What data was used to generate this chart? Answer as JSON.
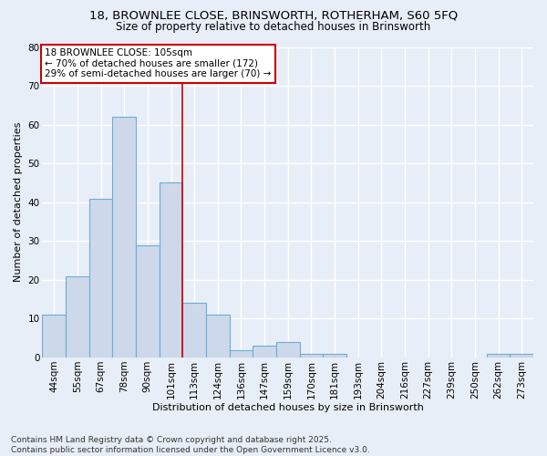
{
  "title_line1": "18, BROWNLEE CLOSE, BRINSWORTH, ROTHERHAM, S60 5FQ",
  "title_line2": "Size of property relative to detached houses in Brinsworth",
  "xlabel": "Distribution of detached houses by size in Brinsworth",
  "ylabel": "Number of detached properties",
  "categories": [
    "44sqm",
    "55sqm",
    "67sqm",
    "78sqm",
    "90sqm",
    "101sqm",
    "113sqm",
    "124sqm",
    "136sqm",
    "147sqm",
    "159sqm",
    "170sqm",
    "181sqm",
    "193sqm",
    "204sqm",
    "216sqm",
    "227sqm",
    "239sqm",
    "250sqm",
    "262sqm",
    "273sqm"
  ],
  "values": [
    11,
    21,
    41,
    62,
    29,
    45,
    14,
    11,
    2,
    3,
    4,
    1,
    1,
    0,
    0,
    0,
    0,
    0,
    0,
    1,
    1
  ],
  "bar_color": "#cdd8ea",
  "bar_edgecolor": "#6baed6",
  "vline_color": "#cc0000",
  "annotation_line1": "18 BROWNLEE CLOSE: 105sqm",
  "annotation_line2": "← 70% of detached houses are smaller (172)",
  "annotation_line3": "29% of semi-detached houses are larger (70) →",
  "annotation_box_color": "white",
  "annotation_box_edgecolor": "#cc0000",
  "ylim": [
    0,
    80
  ],
  "yticks": [
    0,
    10,
    20,
    30,
    40,
    50,
    60,
    70,
    80
  ],
  "background_color": "#e8eef8",
  "plot_bg_color": "#e8eef8",
  "grid_color": "white",
  "footer": "Contains HM Land Registry data © Crown copyright and database right 2025.\nContains public sector information licensed under the Open Government Licence v3.0.",
  "title_fontsize": 9.5,
  "subtitle_fontsize": 8.5,
  "tick_fontsize": 7.5,
  "ylabel_fontsize": 8,
  "xlabel_fontsize": 8,
  "footer_fontsize": 6.5
}
